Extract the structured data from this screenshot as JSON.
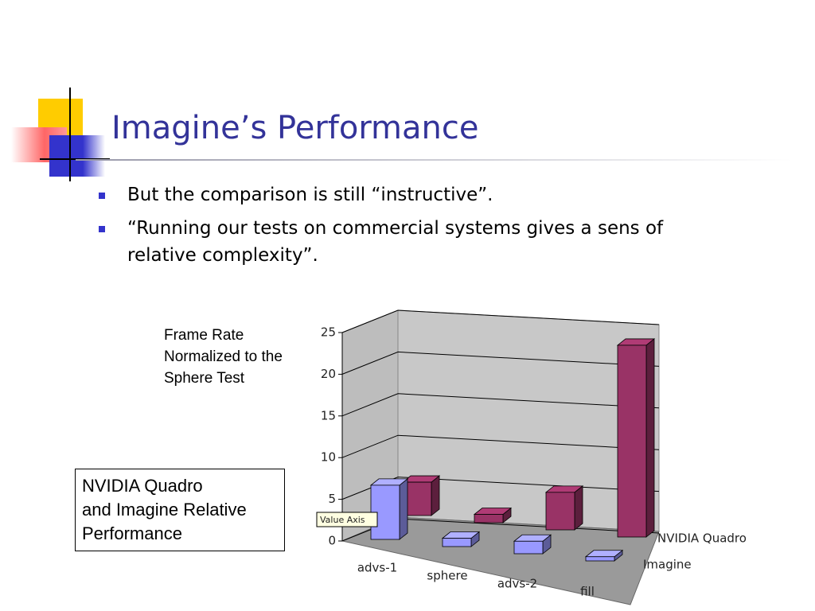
{
  "slide": {
    "title": "Imagine’s Performance",
    "bullets": [
      "But the comparison is still “instructive”.",
      "“Running our tests on commercial systems gives a sens of relative complexity”."
    ],
    "axis_note": [
      "Frame Rate",
      "Normalized to the",
      "Sphere Test"
    ],
    "caption": [
      "NVIDIA Quadro",
      "and Imagine Relative",
      "Performance"
    ],
    "tooltip": "Value Axis"
  },
  "chart_data": {
    "type": "bar3d",
    "categories": [
      "advs-1",
      "sphere",
      "advs-2",
      "fill"
    ],
    "series": [
      {
        "name": "NVIDIA Quadro",
        "color": "#993366",
        "values": [
          4,
          1,
          4.5,
          23
        ]
      },
      {
        "name": "Imagine",
        "color": "#9999ff",
        "values": [
          6.5,
          1,
          1.5,
          0.5
        ]
      }
    ],
    "ylim": [
      0,
      25
    ],
    "yticks": [
      0,
      5,
      10,
      15,
      20,
      25
    ],
    "grid": true
  }
}
